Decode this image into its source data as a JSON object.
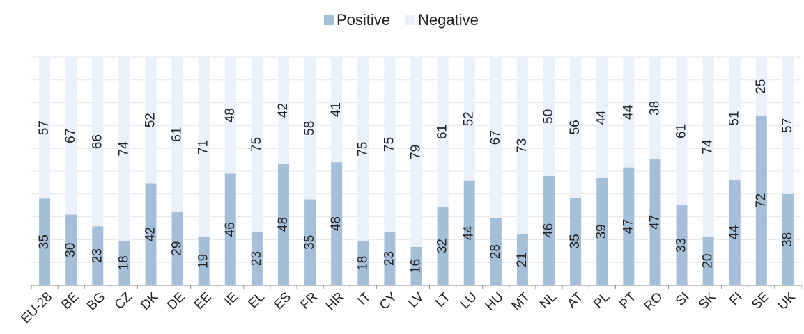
{
  "chart_data": {
    "type": "bar",
    "stacked": "percent",
    "categories": [
      "EU-28",
      "BE",
      "BG",
      "CZ",
      "DK",
      "DE",
      "EE",
      "IE",
      "EL",
      "ES",
      "FR",
      "HR",
      "IT",
      "CY",
      "LV",
      "LT",
      "LU",
      "HU",
      "MT",
      "NL",
      "AT",
      "PL",
      "PT",
      "RO",
      "SI",
      "SK",
      "FI",
      "SE",
      "UK"
    ],
    "series": [
      {
        "name": "Positive",
        "color": "#a6bfd9",
        "values": [
          35,
          30,
          23,
          18,
          42,
          29,
          19,
          46,
          23,
          48,
          35,
          48,
          18,
          23,
          16,
          32,
          44,
          28,
          21,
          46,
          35,
          39,
          47,
          47,
          33,
          20,
          44,
          72,
          38
        ]
      },
      {
        "name": "Negative",
        "color": "#eaf1fa",
        "values": [
          57,
          67,
          66,
          74,
          52,
          61,
          71,
          48,
          75,
          42,
          58,
          41,
          75,
          75,
          79,
          61,
          52,
          67,
          73,
          50,
          56,
          44,
          44,
          38,
          61,
          74,
          51,
          25,
          57
        ]
      }
    ],
    "ylim": [
      0,
      100
    ],
    "yticks": [
      0,
      10,
      20,
      30,
      40,
      50,
      60,
      70,
      80,
      90,
      100
    ],
    "ytick_labels": false,
    "grid": true,
    "legend": "top"
  }
}
